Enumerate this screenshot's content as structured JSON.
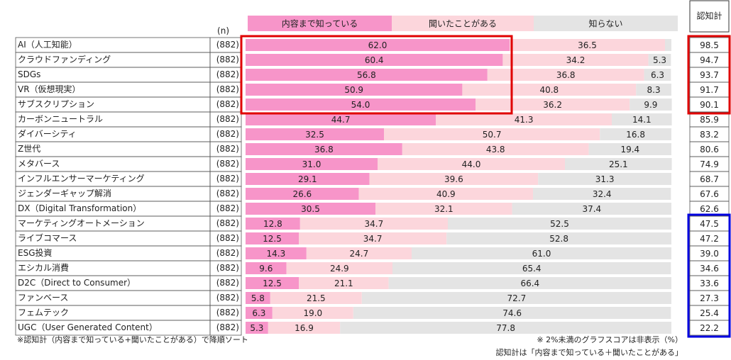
{
  "chart_data": {
    "type": "stacked_bar_horizontal",
    "n_header": "(n)",
    "categories": [
      "AI（人工知能）",
      "クラウドファンディング",
      "SDGs",
      "VR（仮想現実）",
      "サブスクリプション",
      "カーボンニュートラル",
      "ダイバーシティ",
      "Z世代",
      "メタバース",
      "インフルエンサーマーケティング",
      "ジェンダーギャップ解消",
      "DX（Digital Transformation）",
      "マーケティングオートメーション",
      "ライブコマース",
      "ESG投資",
      "エシカル消費",
      "D2C（Direct to Consumer）",
      "ファンベース",
      "フェムテック",
      "UGC（User Generated Content）"
    ],
    "n_labels": [
      "(882)",
      "(882)",
      "(882)",
      "(882)",
      "(882)",
      "(882)",
      "(882)",
      "(882)",
      "(882)",
      "(882)",
      "(882)",
      "(882)",
      "(882)",
      "(882)",
      "(882)",
      "(882)",
      "(882)",
      "(882)",
      "(882)",
      "(882)"
    ],
    "xlim": [
      0,
      100
    ],
    "series": [
      {
        "name": "内容まで知っている",
        "color": "#f795c9",
        "values": [
          62.0,
          60.4,
          56.8,
          50.9,
          54.0,
          44.7,
          32.5,
          36.8,
          31.0,
          29.1,
          26.6,
          30.5,
          12.8,
          12.5,
          14.3,
          9.6,
          12.5,
          5.8,
          6.3,
          5.3
        ],
        "value_labels": [
          "62.0",
          "60.4",
          "56.8",
          "50.9",
          "54.0",
          "44.7",
          "32.5",
          "36.8",
          "31.0",
          "29.1",
          "26.6",
          "30.5",
          "12.8",
          "12.5",
          "14.3",
          "9.6",
          "12.5",
          "5.8",
          "6.3",
          "5.3"
        ]
      },
      {
        "name": "聞いたことがある",
        "color": "#fcd6dc",
        "values": [
          36.5,
          34.2,
          36.8,
          40.8,
          36.2,
          41.3,
          50.7,
          43.8,
          44.0,
          39.6,
          40.9,
          32.1,
          34.7,
          34.7,
          24.7,
          24.9,
          21.1,
          21.5,
          19.0,
          16.9
        ],
        "value_labels": [
          "36.5",
          "34.2",
          "36.8",
          "40.8",
          "36.2",
          "41.3",
          "50.7",
          "43.8",
          "44.0",
          "39.6",
          "40.9",
          "32.1",
          "34.7",
          "34.7",
          "24.7",
          "24.9",
          "21.1",
          "21.5",
          "19.0",
          "16.9"
        ]
      },
      {
        "name": "知らない",
        "color": "#e4e4e4",
        "values": [
          1.5,
          5.3,
          6.3,
          8.3,
          9.9,
          14.1,
          16.8,
          19.4,
          25.1,
          31.3,
          32.4,
          37.4,
          52.5,
          52.8,
          61.0,
          65.4,
          66.4,
          72.7,
          74.6,
          77.8
        ],
        "value_labels": [
          null,
          "5.3",
          "6.3",
          "8.3",
          "9.9",
          "14.1",
          "16.8",
          "19.4",
          "25.1",
          "31.3",
          "32.4",
          "37.4",
          "52.5",
          "52.8",
          "61.0",
          "65.4",
          "66.4",
          "72.7",
          "74.6",
          "77.8"
        ]
      }
    ],
    "awareness": {
      "name": "認知計",
      "values": [
        98.5,
        94.7,
        93.7,
        91.7,
        90.1,
        85.9,
        83.2,
        80.6,
        74.9,
        68.7,
        67.6,
        62.6,
        47.5,
        47.2,
        39.0,
        34.6,
        33.6,
        27.3,
        25.4,
        22.2
      ],
      "value_labels": [
        "98.5",
        "94.7",
        "93.7",
        "91.7",
        "90.1",
        "85.9",
        "83.2",
        "80.6",
        "74.9",
        "68.7",
        "67.6",
        "62.6",
        "47.5",
        "47.2",
        "39.0",
        "34.6",
        "33.6",
        "27.3",
        "25.4",
        "22.2"
      ]
    },
    "notes": [
      "※認知計（内容まで知っている+聞いたことがある）で降順ソート",
      "※ 2%未満のグラフスコアは非表示（%）",
      "認知計は「内容まで知っている＋聞いたことがある」"
    ]
  }
}
